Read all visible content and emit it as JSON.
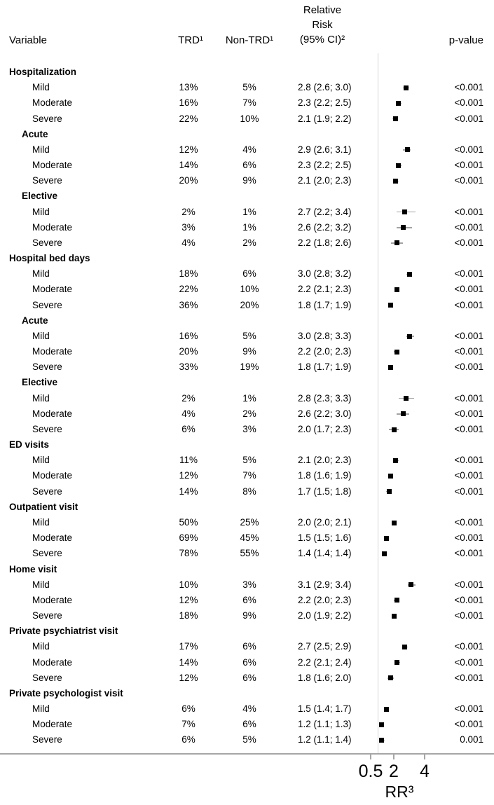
{
  "figure": {
    "columns": {
      "variable": "Variable",
      "trd": "TRD¹",
      "non_trd": "Non-TRD¹",
      "rr": [
        "Relative",
        "Risk",
        "(95% CI)²"
      ],
      "pvalue": "p-value"
    }
  },
  "chart_data": {
    "type": "forest",
    "scale": "linear",
    "reference_line": 1.0,
    "x_ticks": [
      "0.5",
      "2",
      "4"
    ],
    "x_tick_values": [
      0.5,
      2,
      4
    ],
    "xlabel": "RR³",
    "legend": "black square = relative risk point estimate, gray whisker = 95% CI",
    "rows": [
      {
        "group": true,
        "level": 1,
        "label": "Hospitalization"
      },
      {
        "label": "Mild",
        "trd": "13%",
        "non_trd": "5%",
        "rr_ci": "2.8 (2.6; 3.0)",
        "rr": 2.8,
        "lo": 2.6,
        "hi": 3.0,
        "p": "<0.001"
      },
      {
        "label": "Moderate",
        "trd": "16%",
        "non_trd": "7%",
        "rr_ci": "2.3 (2.2; 2.5)",
        "rr": 2.3,
        "lo": 2.2,
        "hi": 2.5,
        "p": "<0.001"
      },
      {
        "label": "Severe",
        "trd": "22%",
        "non_trd": "10%",
        "rr_ci": "2.1 (1.9; 2.2)",
        "rr": 2.1,
        "lo": 1.9,
        "hi": 2.2,
        "p": "<0.001"
      },
      {
        "group": true,
        "level": 2,
        "label": "Acute"
      },
      {
        "label": "Mild",
        "trd": "12%",
        "non_trd": "4%",
        "rr_ci": "2.9 (2.6; 3.1)",
        "rr": 2.9,
        "lo": 2.6,
        "hi": 3.1,
        "p": "<0.001"
      },
      {
        "label": "Moderate",
        "trd": "14%",
        "non_trd": "6%",
        "rr_ci": "2.3 (2.2; 2.5)",
        "rr": 2.3,
        "lo": 2.2,
        "hi": 2.5,
        "p": "<0.001"
      },
      {
        "label": "Severe",
        "trd": "20%",
        "non_trd": "9%",
        "rr_ci": "2.1 (2.0; 2.3)",
        "rr": 2.1,
        "lo": 2.0,
        "hi": 2.3,
        "p": "<0.001"
      },
      {
        "group": true,
        "level": 2,
        "label": "Elective"
      },
      {
        "label": "Mild",
        "trd": "2%",
        "non_trd": "1%",
        "rr_ci": "2.7 (2.2; 3.4)",
        "rr": 2.7,
        "lo": 2.2,
        "hi": 3.4,
        "p": "<0.001"
      },
      {
        "label": "Moderate",
        "trd": "3%",
        "non_trd": "1%",
        "rr_ci": "2.6 (2.2; 3.2)",
        "rr": 2.6,
        "lo": 2.2,
        "hi": 3.2,
        "p": "<0.001"
      },
      {
        "label": "Severe",
        "trd": "4%",
        "non_trd": "2%",
        "rr_ci": "2.2 (1.8; 2.6)",
        "rr": 2.2,
        "lo": 1.8,
        "hi": 2.6,
        "p": "<0.001"
      },
      {
        "group": true,
        "level": 1,
        "label": "Hospital bed days"
      },
      {
        "label": "Mild",
        "trd": "18%",
        "non_trd": "6%",
        "rr_ci": "3.0 (2.8; 3.2)",
        "rr": 3.0,
        "lo": 2.8,
        "hi": 3.2,
        "p": "<0.001"
      },
      {
        "label": "Moderate",
        "trd": "22%",
        "non_trd": "10%",
        "rr_ci": "2.2 (2.1; 2.3)",
        "rr": 2.2,
        "lo": 2.1,
        "hi": 2.3,
        "p": "<0.001"
      },
      {
        "label": "Severe",
        "trd": "36%",
        "non_trd": "20%",
        "rr_ci": "1.8 (1.7; 1.9)",
        "rr": 1.8,
        "lo": 1.7,
        "hi": 1.9,
        "p": "<0.001"
      },
      {
        "group": true,
        "level": 2,
        "label": "Acute"
      },
      {
        "label": "Mild",
        "trd": "16%",
        "non_trd": "5%",
        "rr_ci": "3.0 (2.8; 3.3)",
        "rr": 3.0,
        "lo": 2.8,
        "hi": 3.3,
        "p": "<0.001"
      },
      {
        "label": "Moderate",
        "trd": "20%",
        "non_trd": "9%",
        "rr_ci": "2.2 (2.0; 2.3)",
        "rr": 2.2,
        "lo": 2.0,
        "hi": 2.3,
        "p": "<0.001"
      },
      {
        "label": "Severe",
        "trd": "33%",
        "non_trd": "19%",
        "rr_ci": "1.8 (1.7; 1.9)",
        "rr": 1.8,
        "lo": 1.7,
        "hi": 1.9,
        "p": "<0.001"
      },
      {
        "group": true,
        "level": 2,
        "label": "Elective"
      },
      {
        "label": "Mild",
        "trd": "2%",
        "non_trd": "1%",
        "rr_ci": "2.8 (2.3; 3.3)",
        "rr": 2.8,
        "lo": 2.3,
        "hi": 3.3,
        "p": "<0.001"
      },
      {
        "label": "Moderate",
        "trd": "4%",
        "non_trd": "2%",
        "rr_ci": "2.6 (2.2; 3.0)",
        "rr": 2.6,
        "lo": 2.2,
        "hi": 3.0,
        "p": "<0.001"
      },
      {
        "label": "Severe",
        "trd": "6%",
        "non_trd": "3%",
        "rr_ci": "2.0 (1.7; 2.3)",
        "rr": 2.0,
        "lo": 1.7,
        "hi": 2.3,
        "p": "<0.001"
      },
      {
        "group": true,
        "level": 1,
        "label": "ED visits"
      },
      {
        "label": "Mild",
        "trd": "11%",
        "non_trd": "5%",
        "rr_ci": "2.1 (2.0; 2.3)",
        "rr": 2.1,
        "lo": 2.0,
        "hi": 2.3,
        "p": "<0.001"
      },
      {
        "label": "Moderate",
        "trd": "12%",
        "non_trd": "7%",
        "rr_ci": "1.8 (1.6; 1.9)",
        "rr": 1.8,
        "lo": 1.6,
        "hi": 1.9,
        "p": "<0.001"
      },
      {
        "label": "Severe",
        "trd": "14%",
        "non_trd": "8%",
        "rr_ci": "1.7 (1.5; 1.8)",
        "rr": 1.7,
        "lo": 1.5,
        "hi": 1.8,
        "p": "<0.001"
      },
      {
        "group": true,
        "level": 1,
        "label": "Outpatient visit"
      },
      {
        "label": "Mild",
        "trd": "50%",
        "non_trd": "25%",
        "rr_ci": "2.0 (2.0; 2.1)",
        "rr": 2.0,
        "lo": 2.0,
        "hi": 2.1,
        "p": "<0.001"
      },
      {
        "label": "Moderate",
        "trd": "69%",
        "non_trd": "45%",
        "rr_ci": "1.5 (1.5; 1.6)",
        "rr": 1.5,
        "lo": 1.5,
        "hi": 1.6,
        "p": "<0.001"
      },
      {
        "label": "Severe",
        "trd": "78%",
        "non_trd": "55%",
        "rr_ci": "1.4 (1.4; 1.4)",
        "rr": 1.4,
        "lo": 1.4,
        "hi": 1.4,
        "p": "<0.001"
      },
      {
        "group": true,
        "level": 1,
        "label": "Home visit"
      },
      {
        "label": "Mild",
        "trd": "10%",
        "non_trd": "3%",
        "rr_ci": "3.1 (2.9; 3.4)",
        "rr": 3.1,
        "lo": 2.9,
        "hi": 3.4,
        "p": "<0.001"
      },
      {
        "label": "Moderate",
        "trd": "12%",
        "non_trd": "6%",
        "rr_ci": "2.2 (2.0; 2.3)",
        "rr": 2.2,
        "lo": 2.0,
        "hi": 2.3,
        "p": "<0.001"
      },
      {
        "label": "Severe",
        "trd": "18%",
        "non_trd": "9%",
        "rr_ci": "2.0 (1.9; 2.2)",
        "rr": 2.0,
        "lo": 1.9,
        "hi": 2.2,
        "p": "<0.001"
      },
      {
        "group": true,
        "level": 1,
        "label": "Private psychiatrist visit"
      },
      {
        "label": "Mild",
        "trd": "17%",
        "non_trd": "6%",
        "rr_ci": "2.7 (2.5; 2.9)",
        "rr": 2.7,
        "lo": 2.5,
        "hi": 2.9,
        "p": "<0.001"
      },
      {
        "label": "Moderate",
        "trd": "14%",
        "non_trd": "6%",
        "rr_ci": "2.2 (2.1; 2.4)",
        "rr": 2.2,
        "lo": 2.1,
        "hi": 2.4,
        "p": "<0.001"
      },
      {
        "label": "Severe",
        "trd": "12%",
        "non_trd": "6%",
        "rr_ci": "1.8 (1.6; 2.0)",
        "rr": 1.8,
        "lo": 1.6,
        "hi": 2.0,
        "p": "<0.001"
      },
      {
        "group": true,
        "level": 1,
        "label": "Private psychologist visit"
      },
      {
        "label": "Mild",
        "trd": "6%",
        "non_trd": "4%",
        "rr_ci": "1.5 (1.4; 1.7)",
        "rr": 1.5,
        "lo": 1.4,
        "hi": 1.7,
        "p": "<0.001"
      },
      {
        "label": "Moderate",
        "trd": "7%",
        "non_trd": "6%",
        "rr_ci": "1.2 (1.1; 1.3)",
        "rr": 1.2,
        "lo": 1.1,
        "hi": 1.3,
        "p": "<0.001"
      },
      {
        "label": "Severe",
        "trd": "6%",
        "non_trd": "5%",
        "rr_ci": "1.2 (1.1; 1.4)",
        "rr": 1.2,
        "lo": 1.1,
        "hi": 1.4,
        "p": "0.001"
      }
    ]
  },
  "colors": {
    "text": "#000000",
    "marker": "#000000",
    "whisker": "#a3a3a3",
    "reference_line": "#d6d6d6",
    "axis_line": "#a6a6a6"
  }
}
